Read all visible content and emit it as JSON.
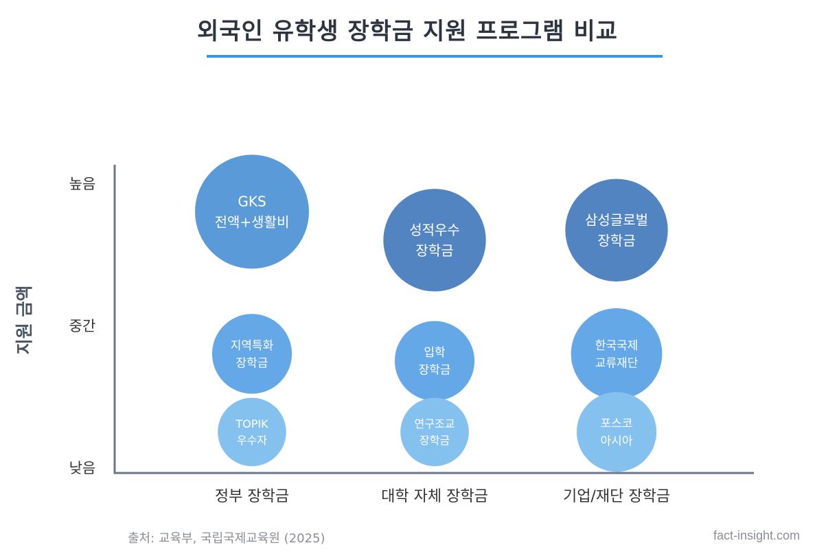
{
  "header": {
    "title": "외국인 유학생 장학금 지원 프로그램 비교"
  },
  "footer": {
    "source": "출처: 교육부, 국립국제교육원 (2025)",
    "site": "fact-insight.com"
  },
  "colors": {
    "axis": "#6b7787",
    "accent": "#3d95dc",
    "high_gov": "#5a9ad9",
    "high_other": "#5284c2",
    "mid": "#65a8e8",
    "low": "#85c1ef",
    "bubble_text": "#ffffff",
    "text": "#333333"
  },
  "chart_data": {
    "type": "bubble",
    "title": "외국인 유학생 장학금 지원 프로그램 비교",
    "xlabel": "",
    "ylabel": "지원 금액",
    "categories": [
      "정부 장학금",
      "대학 자체 장학금",
      "기업/재단 장학금"
    ],
    "y_levels": [
      "낮음",
      "중간",
      "높음"
    ],
    "points": [
      {
        "category": "정부 장학금",
        "level": 2.8,
        "label": [
          "GKS",
          "전액+생활비"
        ],
        "size": 1.0,
        "tier": "high"
      },
      {
        "category": "정부 장학금",
        "level": 1.8,
        "label": [
          "지역특화",
          "장학금"
        ],
        "size": 0.7,
        "tier": "mid"
      },
      {
        "category": "정부 장학금",
        "level": 1.25,
        "label": [
          "TOPIK",
          "우수자"
        ],
        "size": 0.6,
        "tier": "low"
      },
      {
        "category": "대학 자체 장학금",
        "level": 2.6,
        "label": [
          "성적우수",
          "장학금"
        ],
        "size": 0.9,
        "tier": "high"
      },
      {
        "category": "대학 자체 장학금",
        "level": 1.75,
        "label": [
          "입학",
          "장학금"
        ],
        "size": 0.7,
        "tier": "mid"
      },
      {
        "category": "대학 자체 장학금",
        "level": 1.25,
        "label": [
          "연구조교",
          "장학금"
        ],
        "size": 0.6,
        "tier": "low"
      },
      {
        "category": "기업/재단 장학금",
        "level": 2.67,
        "label": [
          "삼성글로벌",
          "장학금"
        ],
        "size": 0.9,
        "tier": "high"
      },
      {
        "category": "기업/재단 장학금",
        "level": 1.8,
        "label": [
          "한국국제",
          "교류재단"
        ],
        "size": 0.8,
        "tier": "mid"
      },
      {
        "category": "기업/재단 장학금",
        "level": 1.25,
        "label": [
          "포스코",
          "아시아"
        ],
        "size": 0.7,
        "tier": "low"
      }
    ]
  }
}
